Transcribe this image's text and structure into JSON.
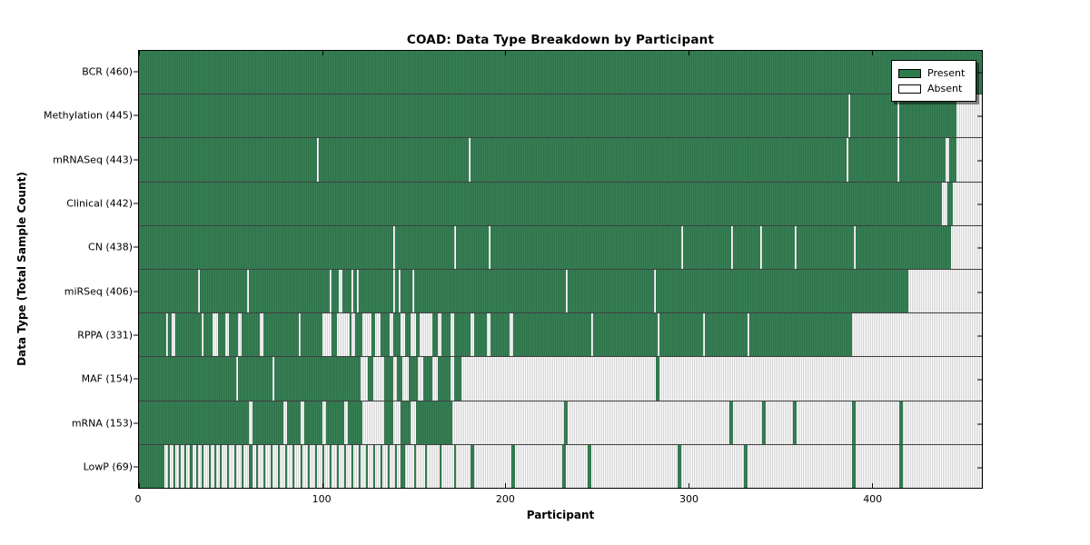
{
  "window": {
    "title": "COAD: Data Type Breakdown by Participant"
  },
  "chart_data": {
    "type": "heatmap",
    "title": "COAD: Data Type Breakdown by Participant",
    "xlabel": "Participant",
    "ylabel": "Data Type (Total Sample Count)",
    "xlim": [
      0,
      460
    ],
    "xticks": [
      0,
      100,
      200,
      300,
      400
    ],
    "grid": false,
    "legend": {
      "position": "upper right",
      "entries": [
        {
          "label": "Present",
          "color": "#2d7a4d"
        },
        {
          "label": "Absent",
          "color": "#ffffff"
        }
      ]
    },
    "colors": {
      "present": "#2d7a4d",
      "present_stripe": "#24633e",
      "absent": "#d4d4d4",
      "absent_stripe": "#fcfcfc",
      "row_divider": "#3f3f3f",
      "axis": "#000000"
    },
    "rows": [
      {
        "label": "BCR (460)",
        "data_type": "BCR",
        "total": 460,
        "present_segments": [
          [
            0,
            460
          ]
        ]
      },
      {
        "label": "Methylation (445)",
        "data_type": "Methylation",
        "total": 445,
        "present_segments": [
          [
            0,
            387
          ],
          [
            388,
            414
          ],
          [
            415,
            446
          ]
        ]
      },
      {
        "label": "mRNASeq (443)",
        "data_type": "mRNASeq",
        "total": 443,
        "present_segments": [
          [
            0,
            97
          ],
          [
            98,
            180
          ],
          [
            181,
            386
          ],
          [
            387,
            414
          ],
          [
            415,
            440
          ],
          [
            442,
            446
          ]
        ]
      },
      {
        "label": "Clinical (442)",
        "data_type": "Clinical",
        "total": 442,
        "present_segments": [
          [
            0,
            438
          ],
          [
            441,
            444
          ]
        ]
      },
      {
        "label": "CN (438)",
        "data_type": "CN",
        "total": 438,
        "present_segments": [
          [
            0,
            139
          ],
          [
            140,
            172
          ],
          [
            173,
            191
          ],
          [
            192,
            296
          ],
          [
            297,
            323
          ],
          [
            324,
            339
          ],
          [
            340,
            358
          ],
          [
            359,
            390
          ],
          [
            391,
            443
          ]
        ]
      },
      {
        "label": "miRSeq (406)",
        "data_type": "miRSeq",
        "total": 406,
        "present_segments": [
          [
            0,
            32
          ],
          [
            33,
            59
          ],
          [
            60,
            104
          ],
          [
            105,
            109
          ],
          [
            111,
            116
          ],
          [
            117,
            119
          ],
          [
            120,
            139
          ],
          [
            140,
            142
          ],
          [
            143,
            149
          ],
          [
            150,
            233
          ],
          [
            234,
            281
          ],
          [
            282,
            420
          ]
        ]
      },
      {
        "label": "RPPA (331)",
        "data_type": "RPPA",
        "total": 331,
        "present_segments": [
          [
            0,
            15
          ],
          [
            16,
            18
          ],
          [
            20,
            34
          ],
          [
            35,
            40
          ],
          [
            43,
            47
          ],
          [
            49,
            54
          ],
          [
            56,
            66
          ],
          [
            68,
            87
          ],
          [
            88,
            100
          ],
          [
            105,
            108
          ],
          [
            115,
            116
          ],
          [
            118,
            122
          ],
          [
            127,
            129
          ],
          [
            132,
            137
          ],
          [
            139,
            143
          ],
          [
            145,
            148
          ],
          [
            151,
            153
          ],
          [
            160,
            163
          ],
          [
            165,
            170
          ],
          [
            172,
            181
          ],
          [
            183,
            190
          ],
          [
            192,
            202
          ],
          [
            204,
            247
          ],
          [
            248,
            283
          ],
          [
            284,
            308
          ],
          [
            309,
            332
          ],
          [
            333,
            389
          ]
        ]
      },
      {
        "label": "MAF (154)",
        "data_type": "MAF",
        "total": 154,
        "present_segments": [
          [
            0,
            53
          ],
          [
            54,
            73
          ],
          [
            74,
            121
          ],
          [
            125,
            128
          ],
          [
            134,
            139
          ],
          [
            141,
            144
          ],
          [
            147,
            152
          ],
          [
            155,
            160
          ],
          [
            163,
            170
          ],
          [
            172,
            176
          ],
          [
            282,
            284
          ]
        ]
      },
      {
        "label": "mRNA (153)",
        "data_type": "mRNA",
        "total": 153,
        "present_segments": [
          [
            0,
            60
          ],
          [
            62,
            79
          ],
          [
            81,
            88
          ],
          [
            90,
            100
          ],
          [
            102,
            112
          ],
          [
            114,
            122
          ],
          [
            134,
            139
          ],
          [
            143,
            148
          ],
          [
            151,
            171
          ],
          [
            232,
            234
          ],
          [
            322,
            324
          ],
          [
            340,
            342
          ],
          [
            357,
            359
          ],
          [
            389,
            391
          ],
          [
            415,
            417
          ]
        ]
      },
      {
        "label": "LowP (69)",
        "data_type": "LowP",
        "total": 69,
        "present_segments": [
          [
            0,
            14
          ],
          [
            16,
            17
          ],
          [
            19,
            20
          ],
          [
            22,
            23
          ],
          [
            25,
            26
          ],
          [
            28,
            29
          ],
          [
            31,
            32
          ],
          [
            34,
            35
          ],
          [
            38,
            39
          ],
          [
            41,
            42
          ],
          [
            44,
            45
          ],
          [
            48,
            49
          ],
          [
            52,
            53
          ],
          [
            56,
            57
          ],
          [
            60,
            62
          ],
          [
            64,
            65
          ],
          [
            68,
            69
          ],
          [
            72,
            73
          ],
          [
            76,
            77
          ],
          [
            80,
            81
          ],
          [
            84,
            85
          ],
          [
            88,
            89
          ],
          [
            92,
            93
          ],
          [
            96,
            97
          ],
          [
            100,
            101
          ],
          [
            104,
            105
          ],
          [
            108,
            109
          ],
          [
            112,
            113
          ],
          [
            116,
            117
          ],
          [
            120,
            121
          ],
          [
            124,
            125
          ],
          [
            128,
            129
          ],
          [
            132,
            133
          ],
          [
            136,
            137
          ],
          [
            140,
            141
          ],
          [
            143,
            145
          ],
          [
            150,
            151
          ],
          [
            156,
            157
          ],
          [
            164,
            165
          ],
          [
            172,
            173
          ],
          [
            181,
            183
          ],
          [
            203,
            205
          ],
          [
            231,
            233
          ],
          [
            245,
            247
          ],
          [
            294,
            296
          ],
          [
            330,
            332
          ],
          [
            389,
            391
          ],
          [
            415,
            417
          ]
        ]
      }
    ]
  }
}
